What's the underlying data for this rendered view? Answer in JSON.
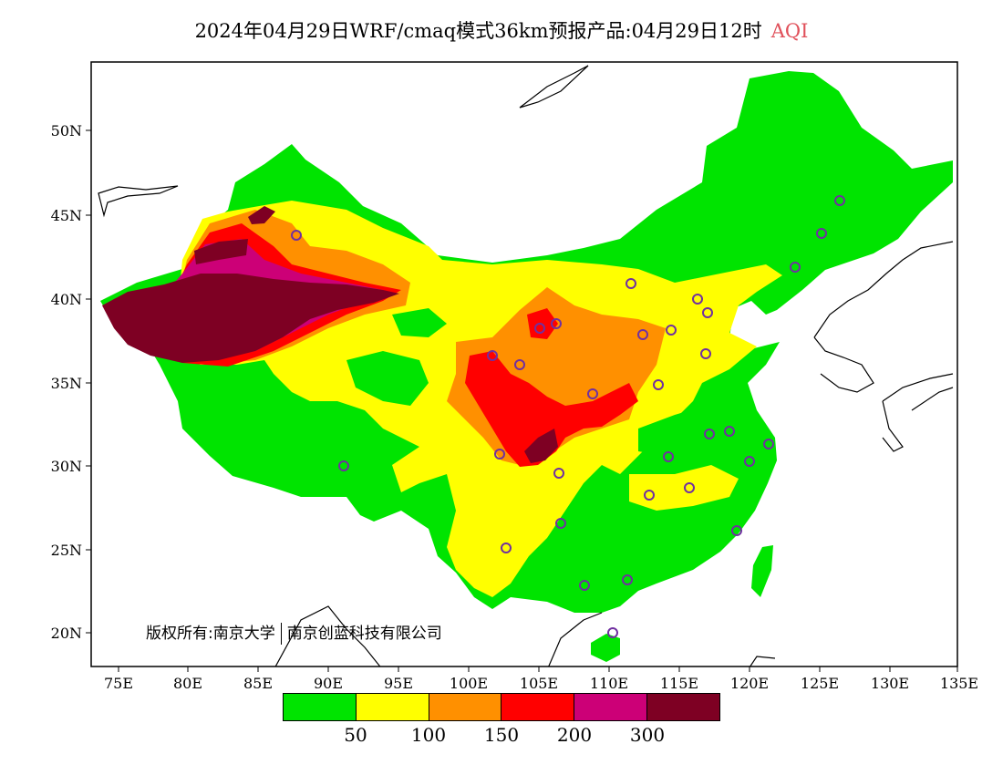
{
  "title": {
    "main": "2024年04月29日WRF/cmaq模式36km预报产品:04月29日12时",
    "product": "AQI"
  },
  "axes": {
    "lon_labels": [
      "75E",
      "80E",
      "85E",
      "90E",
      "95E",
      "100E",
      "105E",
      "110E",
      "115E",
      "120E",
      "125E",
      "130E",
      "135E"
    ],
    "lat_labels": [
      "50N",
      "45N",
      "40N",
      "35N",
      "30N",
      "25N",
      "20N"
    ]
  },
  "copyright": {
    "left": "版权所有:南京大学",
    "right": "南京创蓝科技有限公司"
  },
  "legend": {
    "colors": [
      "#00e400",
      "#ffff00",
      "#ff9000",
      "#ff0000",
      "#cc0077",
      "#7e0023"
    ],
    "ticks": [
      "50",
      "100",
      "150",
      "200",
      "300"
    ]
  }
}
